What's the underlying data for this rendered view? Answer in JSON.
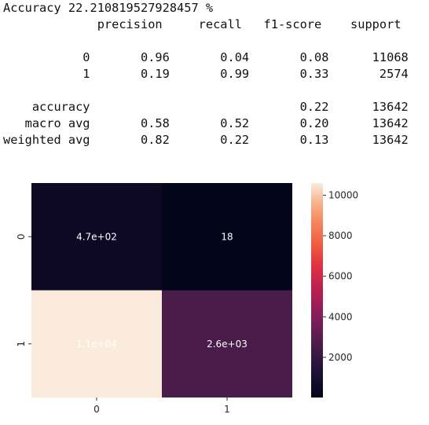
{
  "output": {
    "accuracy_line": "Accuracy 22.210819527928457 %",
    "report_header": [
      "precision",
      "recall",
      "f1-score",
      "support"
    ],
    "report_rows": [
      {
        "label": "0",
        "precision": "0.96",
        "recall": "0.04",
        "f1": "0.08",
        "support": "11068"
      },
      {
        "label": "1",
        "precision": "0.19",
        "recall": "0.99",
        "f1": "0.33",
        "support": "2574"
      },
      {
        "label": "accuracy",
        "precision": "",
        "recall": "",
        "f1": "0.22",
        "support": "13642"
      },
      {
        "label": "macro avg",
        "precision": "0.58",
        "recall": "0.52",
        "f1": "0.20",
        "support": "13642"
      },
      {
        "label": "weighted avg",
        "precision": "0.82",
        "recall": "0.22",
        "f1": "0.13",
        "support": "13642"
      }
    ]
  },
  "chart_data": {
    "type": "heatmap",
    "x_tick_labels": [
      "0",
      "1"
    ],
    "y_tick_labels": [
      "0",
      "1"
    ],
    "values": [
      [
        470,
        18
      ],
      [
        11000,
        2600
      ]
    ],
    "cell_labels": [
      [
        "4.7e+02",
        "18"
      ],
      [
        "1.1e+04",
        "2.6e+03"
      ]
    ],
    "colorbar": {
      "ticks": [
        2000,
        4000,
        6000,
        8000,
        10000
      ],
      "vmin": 18,
      "vmax": 10600
    },
    "colormap": "rocket",
    "grid": false
  }
}
